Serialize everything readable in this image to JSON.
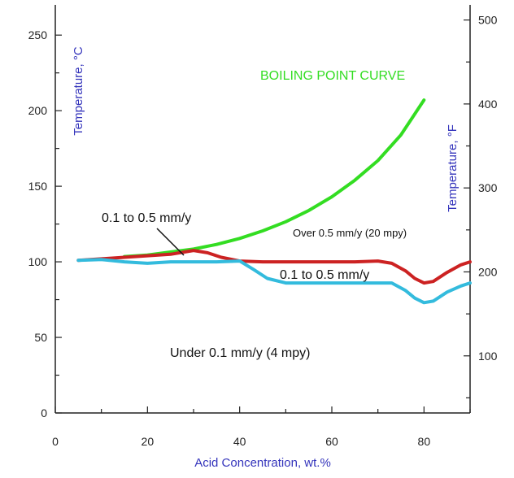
{
  "chart_data": {
    "type": "line",
    "title": "",
    "xlabel": "Acid Concentration, wt.%",
    "ylabel_left": "Temperature, °C",
    "ylabel_right": "Temperature, °F",
    "xlim": [
      0,
      90
    ],
    "ylim_left": [
      0,
      270
    ],
    "ylim_right": [
      32,
      518
    ],
    "x_ticks": [
      0,
      20,
      40,
      60,
      80
    ],
    "y_left_ticks": [
      0,
      50,
      100,
      150,
      200,
      250
    ],
    "y_right_ticks": [
      100,
      200,
      300,
      400,
      500
    ],
    "series": [
      {
        "name": "BOILING POINT CURVE",
        "color": "#33dd22",
        "x": [
          15,
          20,
          25,
          30,
          35,
          40,
          45,
          50,
          55,
          60,
          65,
          70,
          75,
          80
        ],
        "y": [
          103.5,
          104.5,
          106.5,
          108.5,
          111.5,
          115.5,
          120.5,
          126.5,
          134,
          143,
          154,
          167,
          184,
          207
        ]
      },
      {
        "name": "",
        "color": "#cc2222",
        "x": [
          5,
          10,
          15,
          20,
          25,
          28,
          30,
          33,
          36,
          40,
          45,
          50,
          55,
          60,
          65,
          70,
          73,
          76,
          78,
          80,
          82,
          85,
          88,
          90
        ],
        "y": [
          101,
          102,
          103,
          104,
          105,
          106.5,
          107.5,
          106,
          103,
          100.5,
          100,
          100,
          100,
          100,
          100,
          100.5,
          99,
          94,
          89,
          86,
          87,
          93,
          98,
          100
        ]
      },
      {
        "name": "",
        "color": "#33bbdd",
        "x": [
          5,
          10,
          15,
          20,
          25,
          30,
          35,
          40,
          43,
          46,
          50,
          55,
          60,
          65,
          70,
          73,
          76,
          78,
          80,
          82,
          85,
          88,
          90
        ],
        "y": [
          101,
          101.5,
          100,
          99,
          100,
          100,
          100,
          100.5,
          95,
          89,
          86,
          86,
          86,
          86,
          86,
          86,
          81,
          76,
          73,
          74,
          80,
          84,
          86
        ]
      }
    ],
    "annotations": {
      "boiling_label": "BOILING POINT CURVE",
      "over_label": "Over 0.5 mm/y (20 mpy)",
      "mid_label_left": "0.1 to 0.5 mm/y",
      "mid_label_right": "0.1 to 0.5 mm/y",
      "under_label": "Under 0.1 mm/y (4 mpy)"
    },
    "grid": false,
    "legend": "none"
  },
  "colors": {
    "axis": "#222222",
    "axis_label": "#3333bb",
    "boiling_label": "#33dd22"
  }
}
